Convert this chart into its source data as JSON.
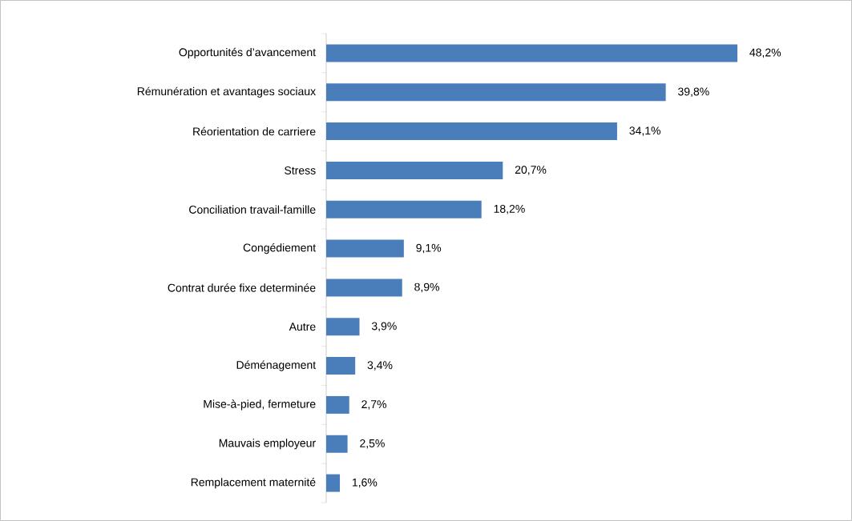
{
  "chart_data": {
    "type": "bar",
    "orientation": "horizontal",
    "color": "#4a7ebb",
    "categories": [
      "Opportunités d’avancement",
      "Rémunération et avantages sociaux",
      "Réorientation de carriere",
      "Stress",
      "Conciliation travail-famille",
      "Congédiement",
      "Contrat durée fixe determinée",
      "Autre",
      "Déménagement",
      "Mise-à-pied, fermeture",
      "Mauvais employeur",
      "Remplacement maternité"
    ],
    "values": [
      48.2,
      39.8,
      34.1,
      20.7,
      18.2,
      9.1,
      8.9,
      3.9,
      3.4,
      2.7,
      2.5,
      1.6
    ],
    "value_labels": [
      "48,2%",
      "39,8%",
      "34,1%",
      "20,7%",
      "18,2%",
      "9,1%",
      "8,9%",
      "3,9%",
      "3,4%",
      "2,7%",
      "2,5%",
      "1,6%"
    ]
  }
}
